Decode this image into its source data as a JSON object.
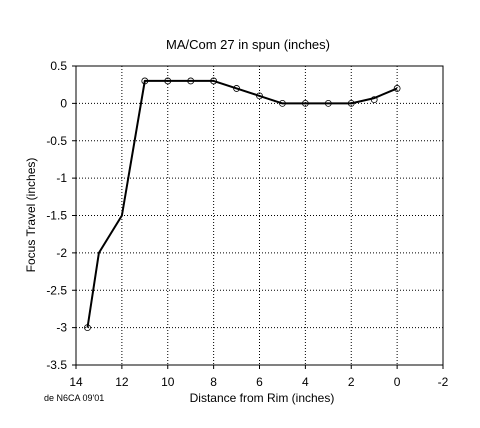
{
  "chart_data": {
    "type": "line",
    "title": "MA/Com 27 in spun (inches)",
    "xlabel": "Distance from Rim (inches)",
    "ylabel": "Focus Travel (inches)",
    "credit": "de N6CA 09'01",
    "x_axis_reversed": true,
    "xlim": [
      14,
      -2
    ],
    "ylim": [
      -3.5,
      0.5
    ],
    "xticks": [
      14,
      12,
      10,
      8,
      6,
      4,
      2,
      0,
      -2
    ],
    "yticks": [
      0.5,
      0,
      -0.5,
      -1,
      -1.5,
      -2,
      -2.5,
      -3,
      -3.5
    ],
    "xtick_labels": [
      "14",
      "12",
      "10",
      "8",
      "6",
      "4",
      "2",
      "0",
      "-2"
    ],
    "ytick_labels": [
      "0.5",
      "0",
      "-0.5",
      "-1",
      "-1.5",
      "-2",
      "-2.5",
      "-3",
      "-3.5"
    ],
    "grid": true,
    "series": [
      {
        "marker": "open-circle",
        "color": "#000000",
        "x": [
          13.5,
          11,
          10,
          9,
          8,
          7,
          6,
          5,
          4,
          3,
          2,
          1,
          0
        ],
        "y": [
          -3.0,
          0.3,
          0.3,
          0.3,
          0.3,
          0.2,
          0.1,
          0.0,
          0.0,
          0.0,
          0.0,
          0.05,
          0.2
        ]
      }
    ],
    "line": {
      "color": "#000000",
      "x": [
        13.5,
        13,
        12,
        11,
        10,
        9,
        8,
        7,
        6,
        5,
        4,
        3,
        2,
        1,
        0
      ],
      "y": [
        -3.0,
        -2.0,
        -1.5,
        0.3,
        0.3,
        0.3,
        0.3,
        0.2,
        0.1,
        0.0,
        0.0,
        0.0,
        0.0,
        0.07,
        0.2
      ]
    }
  }
}
